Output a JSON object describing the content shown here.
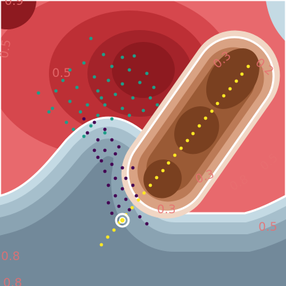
{
  "chart_data": {
    "type": "scatter",
    "xlim": [
      0,
      409
    ],
    "ylim": [
      0,
      409
    ],
    "annotations": [
      "0.9",
      "0.5",
      "0.5",
      "0.3",
      "0.2",
      "0.5",
      "0.3",
      "0.8",
      "0.3",
      "0.5",
      "0.8",
      "0.8"
    ],
    "series": [
      {
        "color": "#1f9e89",
        "x": [
          130,
          148,
          175,
          192,
          120,
          100,
          160,
          185,
          210,
          90,
          135,
          155,
          175,
          200,
          220,
          55,
          80,
          110,
          140,
          165,
          190,
          215,
          75,
          100,
          125,
          150,
          175,
          205,
          70,
          115,
          140,
          160,
          185,
          95,
          130,
          225,
          145,
          120,
          150,
          105
        ],
        "values": [
          354,
          331,
          327,
          329,
          319,
          309,
          314,
          309,
          304,
          294,
          299,
          294,
          289,
          291,
          284,
          276,
          279,
          284,
          279,
          274,
          269,
          269,
          254,
          264,
          259,
          259,
          254,
          251,
          249,
          249,
          244,
          239,
          244,
          234,
          229,
          259,
          269,
          214,
          219,
          224
        ]
      },
      {
        "color": "#440154",
        "x": [
          120,
          135,
          150,
          125,
          140,
          160,
          135,
          150,
          165,
          145,
          160,
          175,
          150,
          165,
          180,
          155,
          175,
          190,
          165,
          180,
          170,
          185,
          160,
          200,
          210,
          190,
          140,
          170,
          155,
          195
        ],
        "values": [
          239,
          234,
          224,
          219,
          209,
          209,
          194,
          194,
          189,
          179,
          174,
          169,
          164,
          154,
          154,
          144,
          139,
          144,
          129,
          124,
          114,
          109,
          104,
          99,
          89,
          169,
          184,
          199,
          119,
          129
        ]
      },
      {
        "color": "#fde725",
        "x": [
          145,
          154,
          163,
          171,
          180,
          189,
          198,
          206,
          215,
          224,
          233,
          241,
          250,
          259,
          268,
          276,
          285,
          294,
          303,
          311,
          320,
          329,
          338,
          346,
          355
        ],
        "values": [
          59,
          70,
          80,
          91,
          102,
          112,
          123,
          133,
          144,
          155,
          165,
          176,
          187,
          197,
          208,
          218,
          229,
          240,
          250,
          261,
          272,
          282,
          293,
          303,
          314
        ]
      }
    ]
  }
}
